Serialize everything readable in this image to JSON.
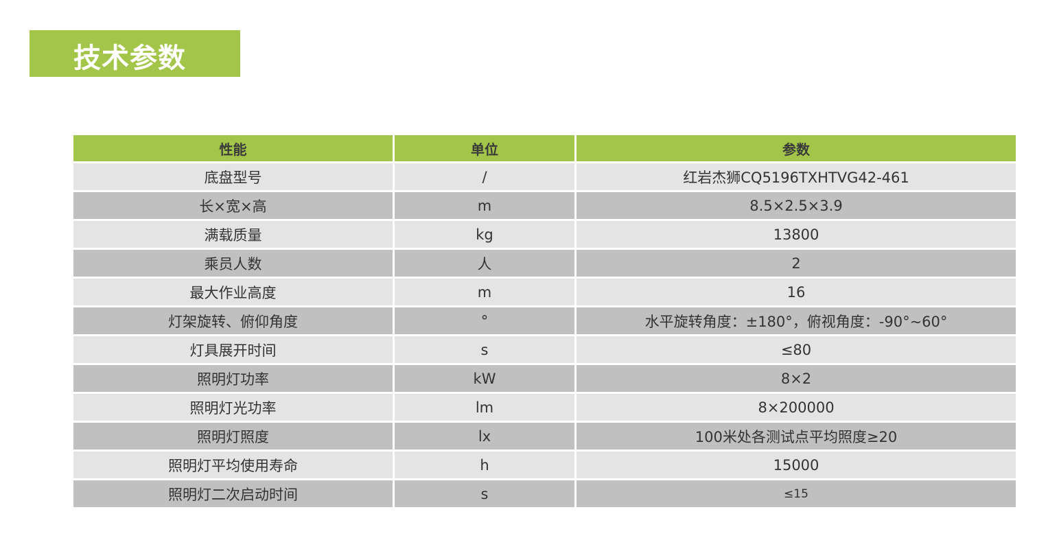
{
  "title": "技术参数",
  "colors": {
    "accent": "#a3c64a",
    "row_light": "#e5e4e4",
    "row_dark": "#c0c0c0"
  },
  "table": {
    "headers": [
      "性能",
      "单位",
      "参数"
    ],
    "rows": [
      [
        "底盘型号",
        "/",
        "红岩杰狮CQ5196TXHTVG42-461"
      ],
      [
        "长×宽×高",
        "m",
        "8.5×2.5×3.9"
      ],
      [
        "满载质量",
        "kg",
        "13800"
      ],
      [
        "乘员人数",
        "人",
        "2"
      ],
      [
        "最大作业高度",
        "m",
        "16"
      ],
      [
        "灯架旋转、俯仰角度",
        "°",
        "水平旋转角度：±180°，俯视角度：-90°~60°"
      ],
      [
        "灯具展开时间",
        "s",
        "≤80"
      ],
      [
        "照明灯功率",
        "kW",
        "8×2"
      ],
      [
        "照明灯光功率",
        "lm",
        "8×200000"
      ],
      [
        "照明灯照度",
        "lx",
        "100米处各测试点平均照度≥20"
      ],
      [
        "照明灯平均使用寿命",
        "h",
        "15000"
      ],
      [
        "照明灯二次启动时间",
        "s",
        "≤15"
      ]
    ]
  }
}
